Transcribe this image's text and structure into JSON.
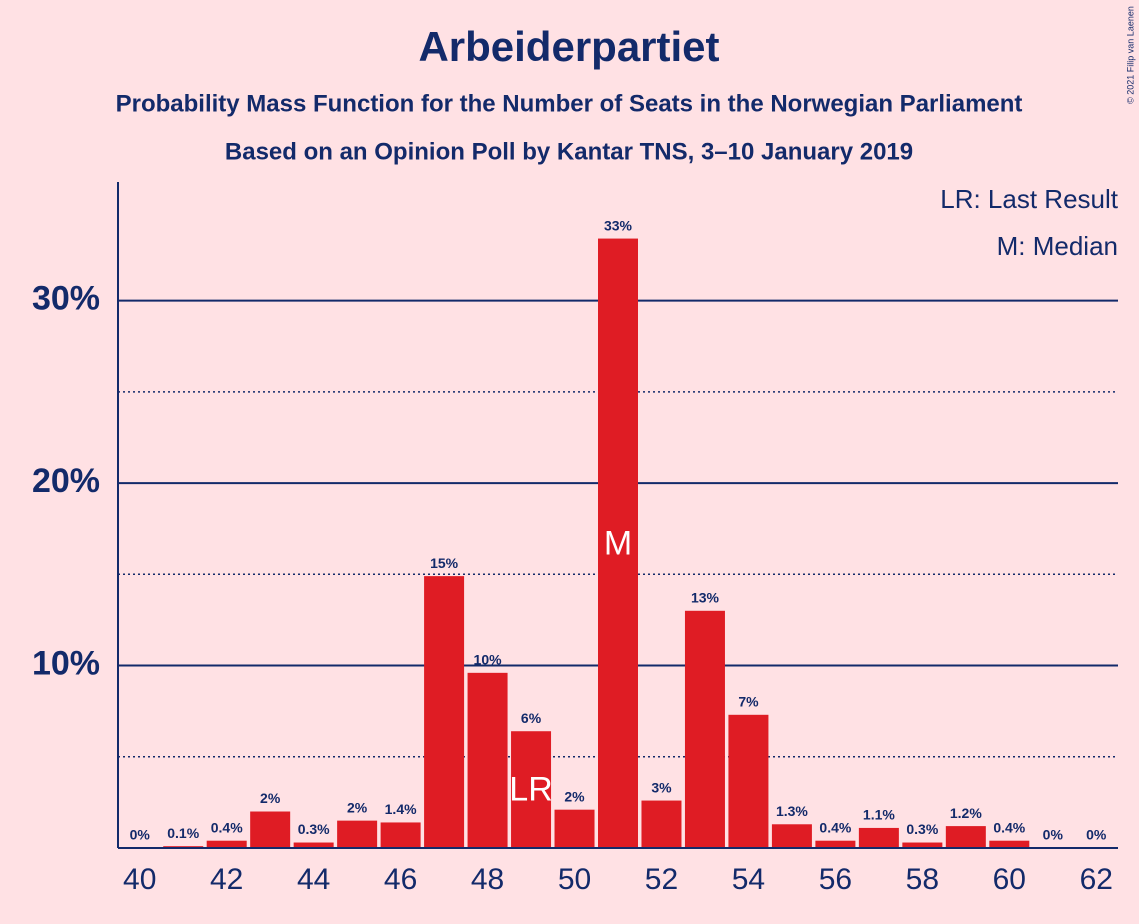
{
  "chart_data": {
    "type": "bar",
    "title": "Arbeiderpartiet",
    "subtitle": [
      "Probability Mass Function for the Number of Seats in the Norwegian Parliament",
      "Based on an Opinion Poll by Kantar TNS, 3–10 January 2019"
    ],
    "x": [
      40,
      41,
      42,
      43,
      44,
      45,
      46,
      47,
      48,
      49,
      50,
      51,
      52,
      53,
      54,
      55,
      56,
      57,
      58,
      59,
      60,
      61,
      62
    ],
    "values": [
      0,
      0.1,
      0.4,
      2,
      0.3,
      1.5,
      1.4,
      14.9,
      9.6,
      6.4,
      2.1,
      33.4,
      2.6,
      13.0,
      7.3,
      1.3,
      0.4,
      1.1,
      0.3,
      1.2,
      0.4,
      0,
      0
    ],
    "value_labels": [
      "0%",
      "0.1%",
      "0.4%",
      "2%",
      "0.3%",
      "2%",
      "1.4%",
      "15%",
      "10%",
      "6%",
      "2%",
      "33%",
      "3%",
      "13%",
      "7%",
      "1.3%",
      "0.4%",
      "1.1%",
      "0.3%",
      "1.2%",
      "0.4%",
      "0%",
      "0%"
    ],
    "color": "#df1c24",
    "xlim": [
      39.5,
      62.5
    ],
    "xticks": [
      40,
      42,
      44,
      46,
      48,
      50,
      52,
      54,
      56,
      58,
      60,
      62
    ],
    "ylim": [
      0,
      36.5
    ],
    "yticks": [
      {
        "value": 10,
        "label": "10%"
      },
      {
        "value": 20,
        "label": "20%"
      },
      {
        "value": 30,
        "label": "30%"
      }
    ],
    "minor_yticks": [
      5,
      15,
      25
    ],
    "grid": true,
    "annotations": [
      {
        "x": 49,
        "text": "LR"
      },
      {
        "x": 51,
        "text": "M"
      }
    ],
    "legend": [
      "LR: Last Result",
      "M: Median"
    ],
    "legend_position": "upper right",
    "copyright": "© 2021 Filip van Laenen"
  }
}
